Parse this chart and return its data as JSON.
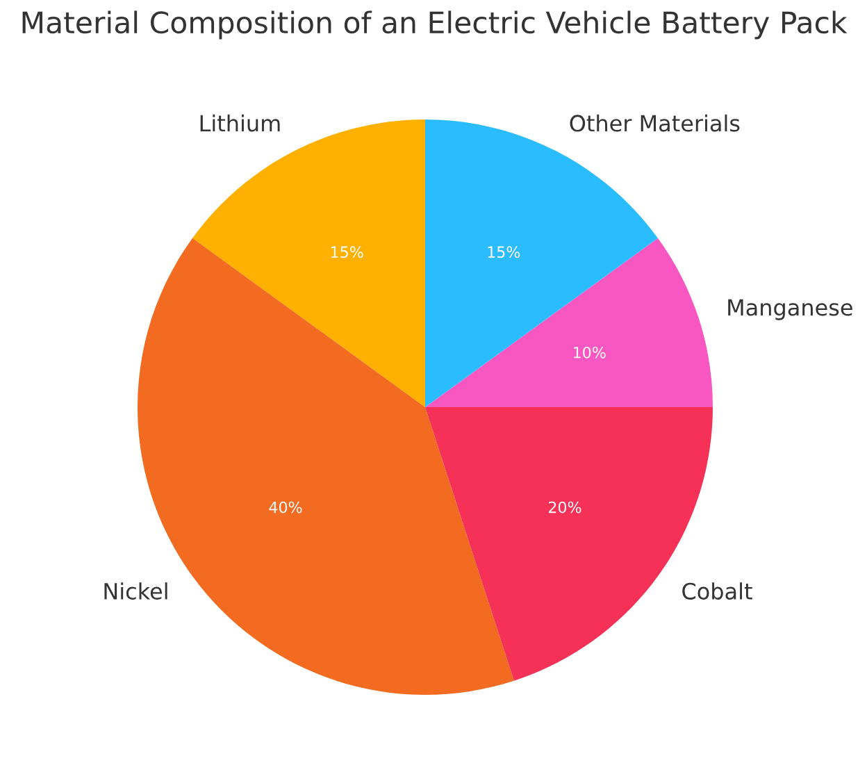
{
  "chart_data": {
    "type": "pie",
    "title": "Material Composition of an Electric Vehicle Battery Pack",
    "categories": [
      "Lithium",
      "Nickel",
      "Cobalt",
      "Manganese",
      "Other Materials"
    ],
    "values": [
      15,
      40,
      20,
      10,
      15
    ],
    "colors": [
      "#ffb000",
      "#f26b21",
      "#f53157",
      "#f857c1",
      "#2bbcfd"
    ],
    "value_labels": [
      "15%",
      "40%",
      "20%",
      "10%",
      "15%"
    ]
  }
}
